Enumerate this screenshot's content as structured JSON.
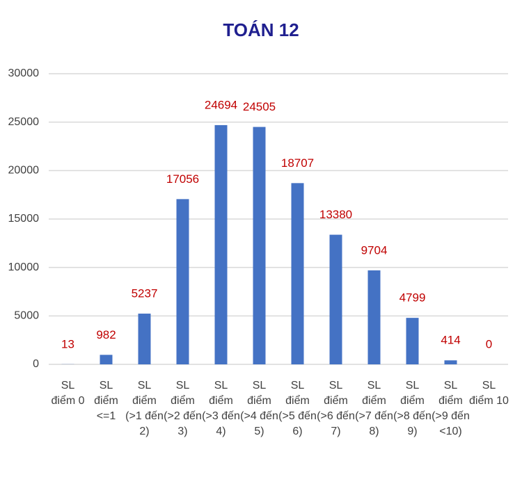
{
  "chart_data": {
    "type": "bar",
    "title": "TOÁN 12",
    "categories": [
      "SL điểm 0",
      "SL điểm <=1",
      "SL điểm (>1 đến 2)",
      "SL điểm (>2 đến 3)",
      "SL điểm (>3 đến 4)",
      "SL điểm (>4 đến 5)",
      "SL điểm (>5 đến 6)",
      "SL điểm (>6 đến 7)",
      "SL điểm (>7 đến 8)",
      "SL điểm (>8 đến 9)",
      "SL điểm (>9 đến <10)",
      "SL điểm 10"
    ],
    "values": [
      13,
      982,
      5237,
      17056,
      24694,
      24505,
      18707,
      13380,
      9704,
      4799,
      414,
      0
    ],
    "color": "#4472c4",
    "label_color": "#c00000",
    "ylim": [
      0,
      30000
    ],
    "yticks": [
      0,
      5000,
      10000,
      15000,
      20000,
      25000,
      30000
    ],
    "grid": true
  }
}
